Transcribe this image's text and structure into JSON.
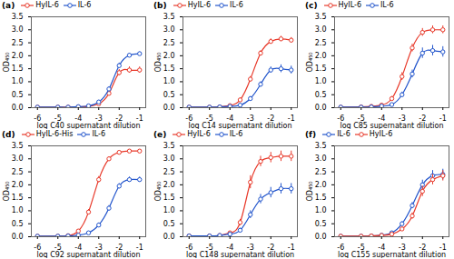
{
  "chart_data": [
    {
      "type": "line",
      "title": "(a)",
      "xlabel": "log C40 supernatant dilution",
      "ylabel": "OD₄₅₀",
      "marker": "circle",
      "x": [
        -6,
        -5,
        -4.5,
        -4,
        -3.5,
        -3,
        -2.5,
        -2,
        -1.5,
        -1
      ],
      "series": [
        {
          "name": "HyIL-6",
          "color": "#e8392a",
          "values": [
            0.02,
            0.02,
            0.02,
            0.03,
            0.05,
            0.15,
            0.55,
            1.35,
            1.45,
            1.45
          ],
          "err": [
            0.005,
            0.005,
            0.005,
            0.01,
            0.02,
            0.05,
            0.08,
            0.12,
            0.12,
            0.12
          ]
        },
        {
          "name": "IL-6",
          "color": "#2255cc",
          "values": [
            0.02,
            0.02,
            0.02,
            0.04,
            0.07,
            0.22,
            0.72,
            1.62,
            2.02,
            2.08
          ],
          "err": [
            0.005,
            0.005,
            0.005,
            0.01,
            0.03,
            0.06,
            0.08,
            0.1,
            0.08,
            0.07
          ]
        }
      ],
      "xlim": [
        -6.3,
        -0.7
      ],
      "ylim": [
        0,
        3.5
      ],
      "xticks": [
        -6,
        -5,
        -4,
        -3,
        -2,
        -1
      ],
      "yticks": [
        {
          "value": 0,
          "label": "0.0"
        },
        {
          "value": 0.5,
          "label": "0.5"
        },
        {
          "value": 1,
          "label": "1.0"
        },
        {
          "value": 1.5,
          "label": "1.5"
        },
        {
          "value": 2,
          "label": "2.0"
        },
        {
          "value": 2.5,
          "label": "2.5"
        },
        {
          "value": 3,
          "label": "3.0"
        },
        {
          "value": 3.5,
          "label": "3.5"
        }
      ]
    },
    {
      "type": "line",
      "title": "(b)",
      "xlabel": "log C14 supernatant dilution",
      "ylabel": "OD₄₅₀",
      "marker": "circle",
      "x": [
        -6,
        -5,
        -4.5,
        -4,
        -3.5,
        -3,
        -2.5,
        -2,
        -1.5,
        -1
      ],
      "series": [
        {
          "name": "HyIL-6",
          "color": "#e8392a",
          "values": [
            0.02,
            0.02,
            0.03,
            0.08,
            0.3,
            1.1,
            2.1,
            2.55,
            2.65,
            2.6
          ],
          "err": [
            0.005,
            0.005,
            0.01,
            0.03,
            0.07,
            0.1,
            0.1,
            0.1,
            0.1,
            0.1
          ]
        },
        {
          "name": "IL-6",
          "color": "#2255cc",
          "values": [
            0.02,
            0.02,
            0.03,
            0.05,
            0.1,
            0.35,
            0.9,
            1.45,
            1.5,
            1.45
          ],
          "err": [
            0.005,
            0.005,
            0.01,
            0.02,
            0.04,
            0.08,
            0.1,
            0.12,
            0.15,
            0.15
          ]
        }
      ],
      "xlim": [
        -6.3,
        -0.7
      ],
      "ylim": [
        0,
        3.5
      ],
      "xticks": [
        -6,
        -5,
        -4,
        -3,
        -2,
        -1
      ],
      "yticks": [
        {
          "value": 0,
          "label": "0.0"
        },
        {
          "value": 0.5,
          "label": "0.5"
        },
        {
          "value": 1,
          "label": "1.0"
        },
        {
          "value": 1.5,
          "label": "1.5"
        },
        {
          "value": 2,
          "label": "2.0"
        },
        {
          "value": 2.5,
          "label": "2.5"
        },
        {
          "value": 3,
          "label": "3.0"
        },
        {
          "value": 3.5,
          "label": "3.5"
        }
      ]
    },
    {
      "type": "line",
      "title": "(c)",
      "xlabel": "log C85 supernatant dilution",
      "ylabel": "OD₄₅₀",
      "marker": "circle",
      "x": [
        -6,
        -5,
        -4.5,
        -4,
        -3.5,
        -3,
        -2.5,
        -2,
        -1.5,
        -1
      ],
      "series": [
        {
          "name": "HyIL-6",
          "color": "#e8392a",
          "values": [
            0.02,
            0.03,
            0.05,
            0.1,
            0.35,
            1.2,
            2.3,
            2.9,
            3.0,
            3.0
          ],
          "err": [
            0.005,
            0.01,
            0.02,
            0.03,
            0.08,
            0.15,
            0.15,
            0.15,
            0.15,
            0.15
          ]
        },
        {
          "name": "IL-6",
          "color": "#2255cc",
          "values": [
            0.02,
            0.02,
            0.03,
            0.06,
            0.12,
            0.5,
            1.3,
            2.1,
            2.2,
            2.15
          ],
          "err": [
            0.005,
            0.005,
            0.01,
            0.02,
            0.04,
            0.1,
            0.15,
            0.2,
            0.2,
            0.2
          ]
        }
      ],
      "xlim": [
        -6.3,
        -0.7
      ],
      "ylim": [
        0,
        3.5
      ],
      "xticks": [
        -6,
        -5,
        -4,
        -3,
        -2,
        -1
      ],
      "yticks": [
        {
          "value": 0,
          "label": "0.0"
        },
        {
          "value": 0.5,
          "label": "0.5"
        },
        {
          "value": 1,
          "label": "1.0"
        },
        {
          "value": 1.5,
          "label": "1.5"
        },
        {
          "value": 2,
          "label": "2.0"
        },
        {
          "value": 2.5,
          "label": "2.5"
        },
        {
          "value": 3,
          "label": "3.0"
        },
        {
          "value": 3.5,
          "label": "3.5"
        }
      ]
    },
    {
      "type": "line",
      "title": "(d)",
      "xlabel": "log C92 supernatant dilution",
      "ylabel": "OD₄₅₀",
      "marker": "circle",
      "x": [
        -6,
        -5,
        -4.5,
        -4,
        -3.5,
        -3,
        -2.5,
        -2,
        -1.5,
        -1
      ],
      "series": [
        {
          "name": "HyIL-6-His",
          "color": "#e8392a",
          "values": [
            0.02,
            0.02,
            0.04,
            0.22,
            0.95,
            2.2,
            3.0,
            3.25,
            3.3,
            3.3
          ],
          "err": [
            0.005,
            0.005,
            0.015,
            0.04,
            0.1,
            0.12,
            0.08,
            0.05,
            0.05,
            0.05
          ]
        },
        {
          "name": "IL-6",
          "color": "#2255cc",
          "values": [
            0.02,
            0.02,
            0.03,
            0.06,
            0.15,
            0.45,
            1.1,
            1.95,
            2.2,
            2.2
          ],
          "err": [
            0.005,
            0.005,
            0.01,
            0.02,
            0.05,
            0.08,
            0.1,
            0.1,
            0.1,
            0.1
          ]
        }
      ],
      "xlim": [
        -6.3,
        -0.7
      ],
      "ylim": [
        0,
        3.5
      ],
      "xticks": [
        -6,
        -5,
        -4,
        -3,
        -2,
        -1
      ],
      "yticks": [
        {
          "value": 0,
          "label": "0.0"
        },
        {
          "value": 0.5,
          "label": "0.5"
        },
        {
          "value": 1,
          "label": "1.0"
        },
        {
          "value": 1.5,
          "label": "1.5"
        },
        {
          "value": 2,
          "label": "2.0"
        },
        {
          "value": 2.5,
          "label": "2.5"
        },
        {
          "value": 3,
          "label": "3.0"
        },
        {
          "value": 3.5,
          "label": "3.5"
        }
      ]
    },
    {
      "type": "line",
      "title": "(e)",
      "xlabel": "log C148 supernatant dilution",
      "ylabel": "OD₄₅₀",
      "marker": "circle",
      "x": [
        -6,
        -5,
        -4.5,
        -4,
        -3.5,
        -3,
        -2.5,
        -2,
        -1.5,
        -1
      ],
      "series": [
        {
          "name": "HyIL-6",
          "color": "#e8392a",
          "values": [
            0.03,
            0.03,
            0.05,
            0.15,
            0.55,
            2.1,
            2.9,
            3.05,
            3.1,
            3.1
          ],
          "err": [
            0.01,
            0.01,
            0.02,
            0.05,
            0.12,
            0.25,
            0.2,
            0.2,
            0.2,
            0.2
          ]
        },
        {
          "name": "IL-6",
          "color": "#2255cc",
          "values": [
            0.03,
            0.03,
            0.05,
            0.1,
            0.25,
            0.85,
            1.45,
            1.7,
            1.85,
            1.85
          ],
          "err": [
            0.01,
            0.01,
            0.02,
            0.04,
            0.08,
            0.15,
            0.18,
            0.2,
            0.2,
            0.2
          ]
        }
      ],
      "xlim": [
        -6.3,
        -0.7
      ],
      "ylim": [
        0,
        3.5
      ],
      "xticks": [
        -6,
        -5,
        -4,
        -3,
        -2,
        -1
      ],
      "yticks": [
        {
          "value": 0,
          "label": "0.0"
        },
        {
          "value": 0.5,
          "label": "0.5"
        },
        {
          "value": 1,
          "label": "1.0"
        },
        {
          "value": 1.5,
          "label": "1.5"
        },
        {
          "value": 2,
          "label": "2.0"
        },
        {
          "value": 2.5,
          "label": "2.5"
        },
        {
          "value": 3,
          "label": "3.0"
        },
        {
          "value": 3.5,
          "label": "3.5"
        }
      ]
    },
    {
      "type": "line",
      "title": "(f)",
      "xlabel": "log C155 supernatant dilution",
      "ylabel": "OD₄₅₀",
      "marker": "circle",
      "x": [
        -6,
        -5,
        -4.5,
        -4,
        -3.5,
        -3,
        -2.5,
        -2,
        -1.5,
        -1
      ],
      "series": [
        {
          "name": "IL-6",
          "color": "#2255cc",
          "values": [
            0.02,
            0.02,
            0.03,
            0.06,
            0.15,
            0.5,
            1.2,
            2.0,
            2.35,
            2.4
          ],
          "err": [
            0.005,
            0.005,
            0.01,
            0.02,
            0.04,
            0.08,
            0.12,
            0.18,
            0.2,
            0.2
          ]
        },
        {
          "name": "HyIL-6",
          "color": "#e8392a",
          "values": [
            0.02,
            0.02,
            0.03,
            0.05,
            0.1,
            0.3,
            0.8,
            1.75,
            2.2,
            2.35
          ],
          "err": [
            0.005,
            0.005,
            0.01,
            0.02,
            0.04,
            0.08,
            0.12,
            0.2,
            0.2,
            0.2
          ]
        }
      ],
      "xlim": [
        -6.3,
        -0.7
      ],
      "ylim": [
        0,
        3.5
      ],
      "xticks": [
        -6,
        -5,
        -4,
        -3,
        -2,
        -1
      ],
      "yticks": [
        {
          "value": 0,
          "label": "0.0"
        },
        {
          "value": 0.5,
          "label": "0.5"
        },
        {
          "value": 1,
          "label": "1.0"
        },
        {
          "value": 1.5,
          "label": "1.5"
        },
        {
          "value": 2,
          "label": "2.0"
        },
        {
          "value": 2.5,
          "label": "2.5"
        },
        {
          "value": 3,
          "label": "3.0"
        },
        {
          "value": 3.5,
          "label": "3.5"
        }
      ]
    }
  ]
}
